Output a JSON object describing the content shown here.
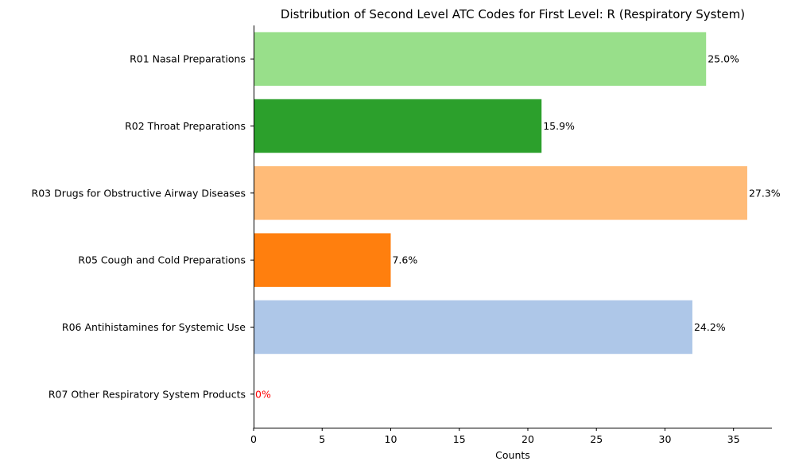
{
  "chart_data": {
    "type": "bar",
    "orientation": "horizontal",
    "title": "Distribution of Second Level ATC Codes for First Level: R (Respiratory System)",
    "xlabel": "Counts",
    "ylabel": "",
    "xlim": [
      0,
      37.8
    ],
    "xticks": [
      "0",
      "5",
      "10",
      "15",
      "20",
      "25",
      "30",
      "35"
    ],
    "grid": false,
    "categories": [
      "R01 Nasal Preparations",
      "R02 Throat Preparations",
      "R03 Drugs for Obstructive Airway Diseases",
      "R05 Cough and Cold Preparations",
      "R06 Antihistamines for Systemic Use",
      "R07 Other Respiratory System Products"
    ],
    "values": [
      33,
      21,
      36,
      10,
      32,
      0
    ],
    "labels": [
      "25.0%",
      "15.9%",
      "27.3%",
      "7.6%",
      "24.2%",
      "0%"
    ],
    "colors": [
      "#98df8a",
      "#2ca02c",
      "#ffbb78",
      "#ff7f0e",
      "#aec7e8",
      "#1f77b4"
    ],
    "label_colors": [
      "#000000",
      "#000000",
      "#000000",
      "#000000",
      "#000000",
      "#ff0000"
    ]
  }
}
